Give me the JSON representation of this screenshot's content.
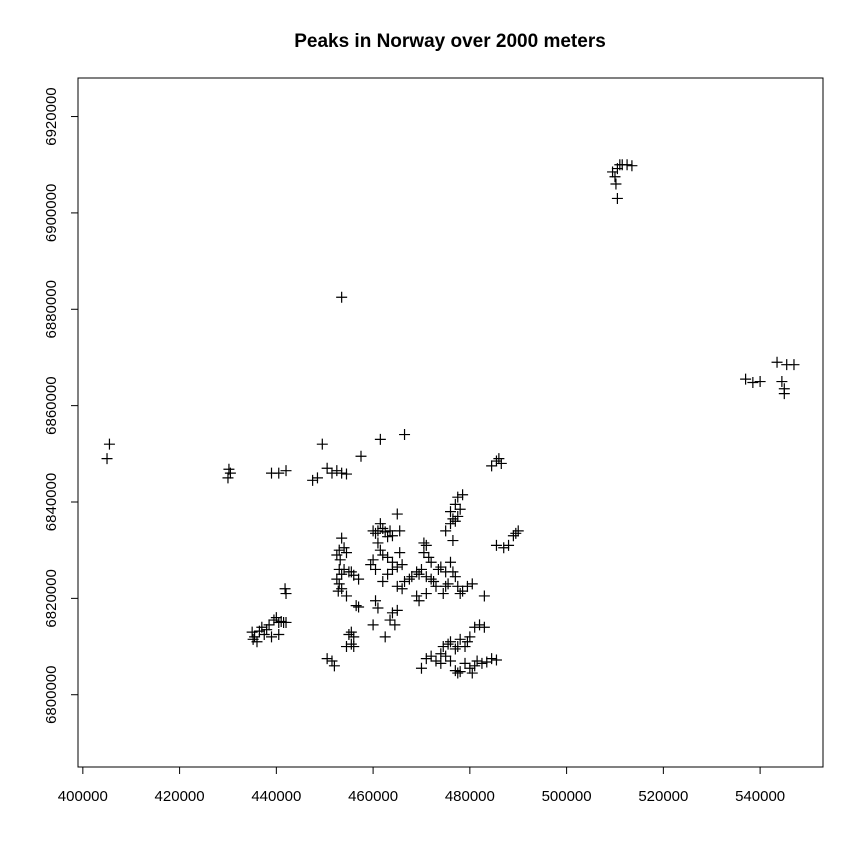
{
  "chart_data": {
    "type": "scatter",
    "title": "Peaks in Norway over 2000 meters",
    "xlabel": "",
    "ylabel": "",
    "xlim": [
      399000,
      553000
    ],
    "ylim": [
      6785000,
      6928000
    ],
    "xticks": [
      400000,
      420000,
      440000,
      460000,
      480000,
      500000,
      520000,
      540000
    ],
    "yticks": [
      6800000,
      6820000,
      6840000,
      6860000,
      6880000,
      6900000,
      6920000
    ],
    "grid": false,
    "marker": "plus",
    "color": "#000000",
    "points": [
      [
        405000,
        6849000
      ],
      [
        405500,
        6852000
      ],
      [
        430000,
        6845000
      ],
      [
        430500,
        6846000
      ],
      [
        430200,
        6846800
      ],
      [
        439000,
        6846000
      ],
      [
        440500,
        6846000
      ],
      [
        442000,
        6846500
      ],
      [
        447500,
        6844500
      ],
      [
        448500,
        6845000
      ],
      [
        449500,
        6852000
      ],
      [
        450500,
        6847000
      ],
      [
        451500,
        6846000
      ],
      [
        452500,
        6846500
      ],
      [
        453500,
        6846000
      ],
      [
        454500,
        6845800
      ],
      [
        457500,
        6849500
      ],
      [
        461500,
        6853000
      ],
      [
        466500,
        6854000
      ],
      [
        453500,
        6882500
      ],
      [
        509500,
        6908500
      ],
      [
        510000,
        6907500
      ],
      [
        510500,
        6909200
      ],
      [
        511000,
        6910000
      ],
      [
        510200,
        6906000
      ],
      [
        511500,
        6910000
      ],
      [
        512500,
        6910000
      ],
      [
        513500,
        6909800
      ],
      [
        510500,
        6903000
      ],
      [
        537000,
        6865500
      ],
      [
        538500,
        6864800
      ],
      [
        540000,
        6865000
      ],
      [
        543500,
        6869000
      ],
      [
        544500,
        6865000
      ],
      [
        545000,
        6863500
      ],
      [
        545000,
        6862500
      ],
      [
        545500,
        6868500
      ],
      [
        547000,
        6868500
      ],
      [
        435000,
        6813000
      ],
      [
        435500,
        6812000
      ],
      [
        436000,
        6811000
      ],
      [
        435200,
        6811500
      ],
      [
        436500,
        6813200
      ],
      [
        437500,
        6812500
      ],
      [
        437000,
        6814000
      ],
      [
        438000,
        6813500
      ],
      [
        438500,
        6814500
      ],
      [
        439000,
        6812000
      ],
      [
        439500,
        6815500
      ],
      [
        440000,
        6816000
      ],
      [
        440500,
        6815000
      ],
      [
        441000,
        6815200
      ],
      [
        441500,
        6815000
      ],
      [
        442000,
        6815000
      ],
      [
        441800,
        6822000
      ],
      [
        442000,
        6821000
      ],
      [
        440500,
        6812500
      ],
      [
        450500,
        6807500
      ],
      [
        451500,
        6807000
      ],
      [
        452000,
        6806000
      ],
      [
        452500,
        6829000
      ],
      [
        453000,
        6830000
      ],
      [
        453500,
        6832500
      ],
      [
        453200,
        6828000
      ],
      [
        454000,
        6830500
      ],
      [
        454500,
        6829500
      ],
      [
        453000,
        6826000
      ],
      [
        454000,
        6826000
      ],
      [
        455000,
        6825500
      ],
      [
        453500,
        6825000
      ],
      [
        452500,
        6824000
      ],
      [
        453000,
        6823000
      ],
      [
        453500,
        6822000
      ],
      [
        455500,
        6825500
      ],
      [
        456000,
        6824800
      ],
      [
        452800,
        6821500
      ],
      [
        454500,
        6820500
      ],
      [
        456500,
        6818500
      ],
      [
        457000,
        6818200
      ],
      [
        457000,
        6824000
      ],
      [
        455000,
        6812500
      ],
      [
        455500,
        6813000
      ],
      [
        456000,
        6812000
      ],
      [
        454500,
        6810000
      ],
      [
        455500,
        6810500
      ],
      [
        456000,
        6810000
      ],
      [
        460000,
        6834000
      ],
      [
        460500,
        6833500
      ],
      [
        461000,
        6834000
      ],
      [
        461500,
        6835500
      ],
      [
        462000,
        6834500
      ],
      [
        462500,
        6833800
      ],
      [
        463000,
        6832800
      ],
      [
        463500,
        6834000
      ],
      [
        464000,
        6833000
      ],
      [
        465000,
        6837500
      ],
      [
        465500,
        6834000
      ],
      [
        461000,
        6831500
      ],
      [
        461500,
        6830000
      ],
      [
        462000,
        6829000
      ],
      [
        463000,
        6828500
      ],
      [
        464000,
        6827500
      ],
      [
        460000,
        6828000
      ],
      [
        459500,
        6827000
      ],
      [
        460500,
        6826000
      ],
      [
        462000,
        6823500
      ],
      [
        463000,
        6825000
      ],
      [
        464000,
        6826000
      ],
      [
        465500,
        6829500
      ],
      [
        466000,
        6827000
      ],
      [
        465000,
        6826500
      ],
      [
        460500,
        6819500
      ],
      [
        461000,
        6818000
      ],
      [
        460000,
        6814500
      ],
      [
        462500,
        6812000
      ],
      [
        463500,
        6815500
      ],
      [
        464000,
        6817000
      ],
      [
        464500,
        6814500
      ],
      [
        465000,
        6817500
      ],
      [
        465000,
        6822500
      ],
      [
        466000,
        6822000
      ],
      [
        466500,
        6823500
      ],
      [
        467500,
        6824000
      ],
      [
        468000,
        6824500
      ],
      [
        469000,
        6825500
      ],
      [
        469500,
        6825000
      ],
      [
        470000,
        6826000
      ],
      [
        470500,
        6831500
      ],
      [
        471000,
        6831000
      ],
      [
        470500,
        6829500
      ],
      [
        471500,
        6828500
      ],
      [
        472000,
        6827500
      ],
      [
        471000,
        6824500
      ],
      [
        472000,
        6824000
      ],
      [
        472500,
        6823500
      ],
      [
        473000,
        6822500
      ],
      [
        471000,
        6821000
      ],
      [
        469000,
        6820500
      ],
      [
        469500,
        6819500
      ],
      [
        473500,
        6826000
      ],
      [
        474000,
        6826500
      ],
      [
        475000,
        6825500
      ],
      [
        476000,
        6827500
      ],
      [
        476500,
        6825500
      ],
      [
        477000,
        6824500
      ],
      [
        475500,
        6823000
      ],
      [
        475000,
        6822500
      ],
      [
        474500,
        6821000
      ],
      [
        476500,
        6832000
      ],
      [
        475000,
        6834000
      ],
      [
        476000,
        6835500
      ],
      [
        476500,
        6836500
      ],
      [
        477000,
        6836000
      ],
      [
        477500,
        6837000
      ],
      [
        478000,
        6838500
      ],
      [
        477000,
        6839500
      ],
      [
        477500,
        6841000
      ],
      [
        478500,
        6841500
      ],
      [
        476000,
        6838000
      ],
      [
        477500,
        6822500
      ],
      [
        478000,
        6821000
      ],
      [
        478500,
        6821500
      ],
      [
        479500,
        6822500
      ],
      [
        480500,
        6823000
      ],
      [
        483000,
        6820500
      ],
      [
        485500,
        6831000
      ],
      [
        487000,
        6830500
      ],
      [
        488000,
        6831000
      ],
      [
        489000,
        6833000
      ],
      [
        489500,
        6833500
      ],
      [
        490000,
        6834000
      ],
      [
        484500,
        6847500
      ],
      [
        485500,
        6848500
      ],
      [
        486000,
        6849000
      ],
      [
        486500,
        6848000
      ],
      [
        470000,
        6805500
      ],
      [
        471000,
        6807500
      ],
      [
        472000,
        6808000
      ],
      [
        473000,
        6807000
      ],
      [
        474000,
        6808500
      ],
      [
        474500,
        6810000
      ],
      [
        475500,
        6810500
      ],
      [
        474000,
        6806500
      ],
      [
        475000,
        6808000
      ],
      [
        476000,
        6811000
      ],
      [
        477000,
        6809500
      ],
      [
        477500,
        6810000
      ],
      [
        478000,
        6811500
      ],
      [
        479000,
        6810000
      ],
      [
        479500,
        6811000
      ],
      [
        480000,
        6812000
      ],
      [
        481000,
        6814000
      ],
      [
        482000,
        6814500
      ],
      [
        483000,
        6814000
      ],
      [
        476000,
        6807000
      ],
      [
        477000,
        6805000
      ],
      [
        477500,
        6804500
      ],
      [
        478000,
        6804800
      ],
      [
        479000,
        6806500
      ],
      [
        480000,
        6805500
      ],
      [
        480500,
        6804500
      ],
      [
        481500,
        6807000
      ],
      [
        482500,
        6806500
      ],
      [
        483500,
        6806800
      ],
      [
        484500,
        6807500
      ],
      [
        485500,
        6807200
      ],
      [
        481000,
        6806000
      ]
    ]
  }
}
